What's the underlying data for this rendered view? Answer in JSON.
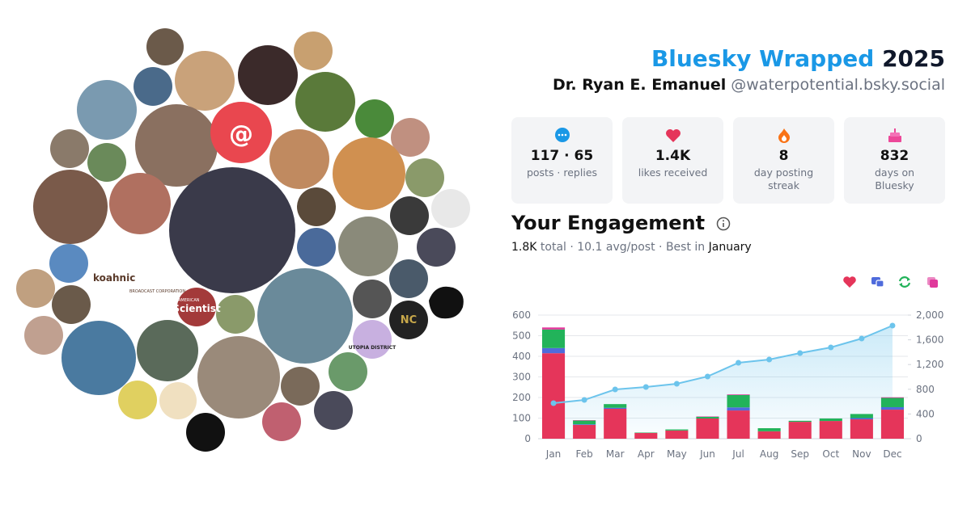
{
  "header": {
    "title": "Bluesky Wrapped",
    "year": "2025",
    "name": "Dr. Ryan E. Emanuel",
    "handle": "@waterpotential.bsky.social"
  },
  "stats": [
    {
      "value": "117 · 65",
      "label": "posts · replies"
    },
    {
      "value": "1.4K",
      "label": "likes received"
    },
    {
      "value": "8",
      "label": "day posting streak"
    },
    {
      "value": "832",
      "label": "days on Bluesky"
    }
  ],
  "engagement": {
    "title": "Your Engagement",
    "summary": [
      "1.8K",
      " total · 10.1 avg/post · Best in ",
      "January"
    ]
  },
  "collage": {
    "labels": [
      "@",
      "koahnic",
      "BROADCAST CORPORATION",
      "AMERICAN",
      "Scientist",
      "NC",
      "UTOPIA DISTRICT"
    ]
  },
  "chart_data": {
    "type": "bar",
    "stacked": true,
    "categories": [
      "Jan",
      "Feb",
      "Mar",
      "Apr",
      "May",
      "Jun",
      "Jul",
      "Aug",
      "Sep",
      "Oct",
      "Nov",
      "Dec"
    ],
    "series": [
      {
        "color": "#e5355a",
        "values": [
          415,
          67,
          145,
          28,
          40,
          98,
          137,
          36,
          82,
          86,
          94,
          141
        ]
      },
      {
        "color": "#4f6bdc",
        "values": [
          25,
          3,
          5,
          0,
          0,
          0,
          15,
          0,
          0,
          0,
          6,
          12
        ]
      },
      {
        "color": "#22b35a",
        "values": [
          90,
          18,
          18,
          2,
          5,
          8,
          60,
          15,
          5,
          12,
          20,
          45
        ]
      },
      {
        "color": "#e0399b",
        "values": [
          10,
          2,
          0,
          0,
          0,
          2,
          3,
          0,
          0,
          0,
          0,
          3
        ]
      },
      {
        "type": "line",
        "axis": "y2",
        "color": "#6cc4ec",
        "values": [
          575,
          627,
          797,
          837,
          889,
          1007,
          1229,
          1281,
          1386,
          1477,
          1621,
          1830
        ]
      }
    ],
    "ylim": [
      0,
      600
    ],
    "yticks": [
      0,
      100,
      200,
      300,
      400,
      500,
      600
    ],
    "y2lim": [
      0,
      2000
    ],
    "y2ticks": [
      0,
      400,
      800,
      {
        "value": 1200,
        "label": "1,200"
      },
      {
        "value": 1600,
        "label": "1,600"
      },
      {
        "value": 2000,
        "label": "2,000"
      }
    ],
    "grid": true
  }
}
